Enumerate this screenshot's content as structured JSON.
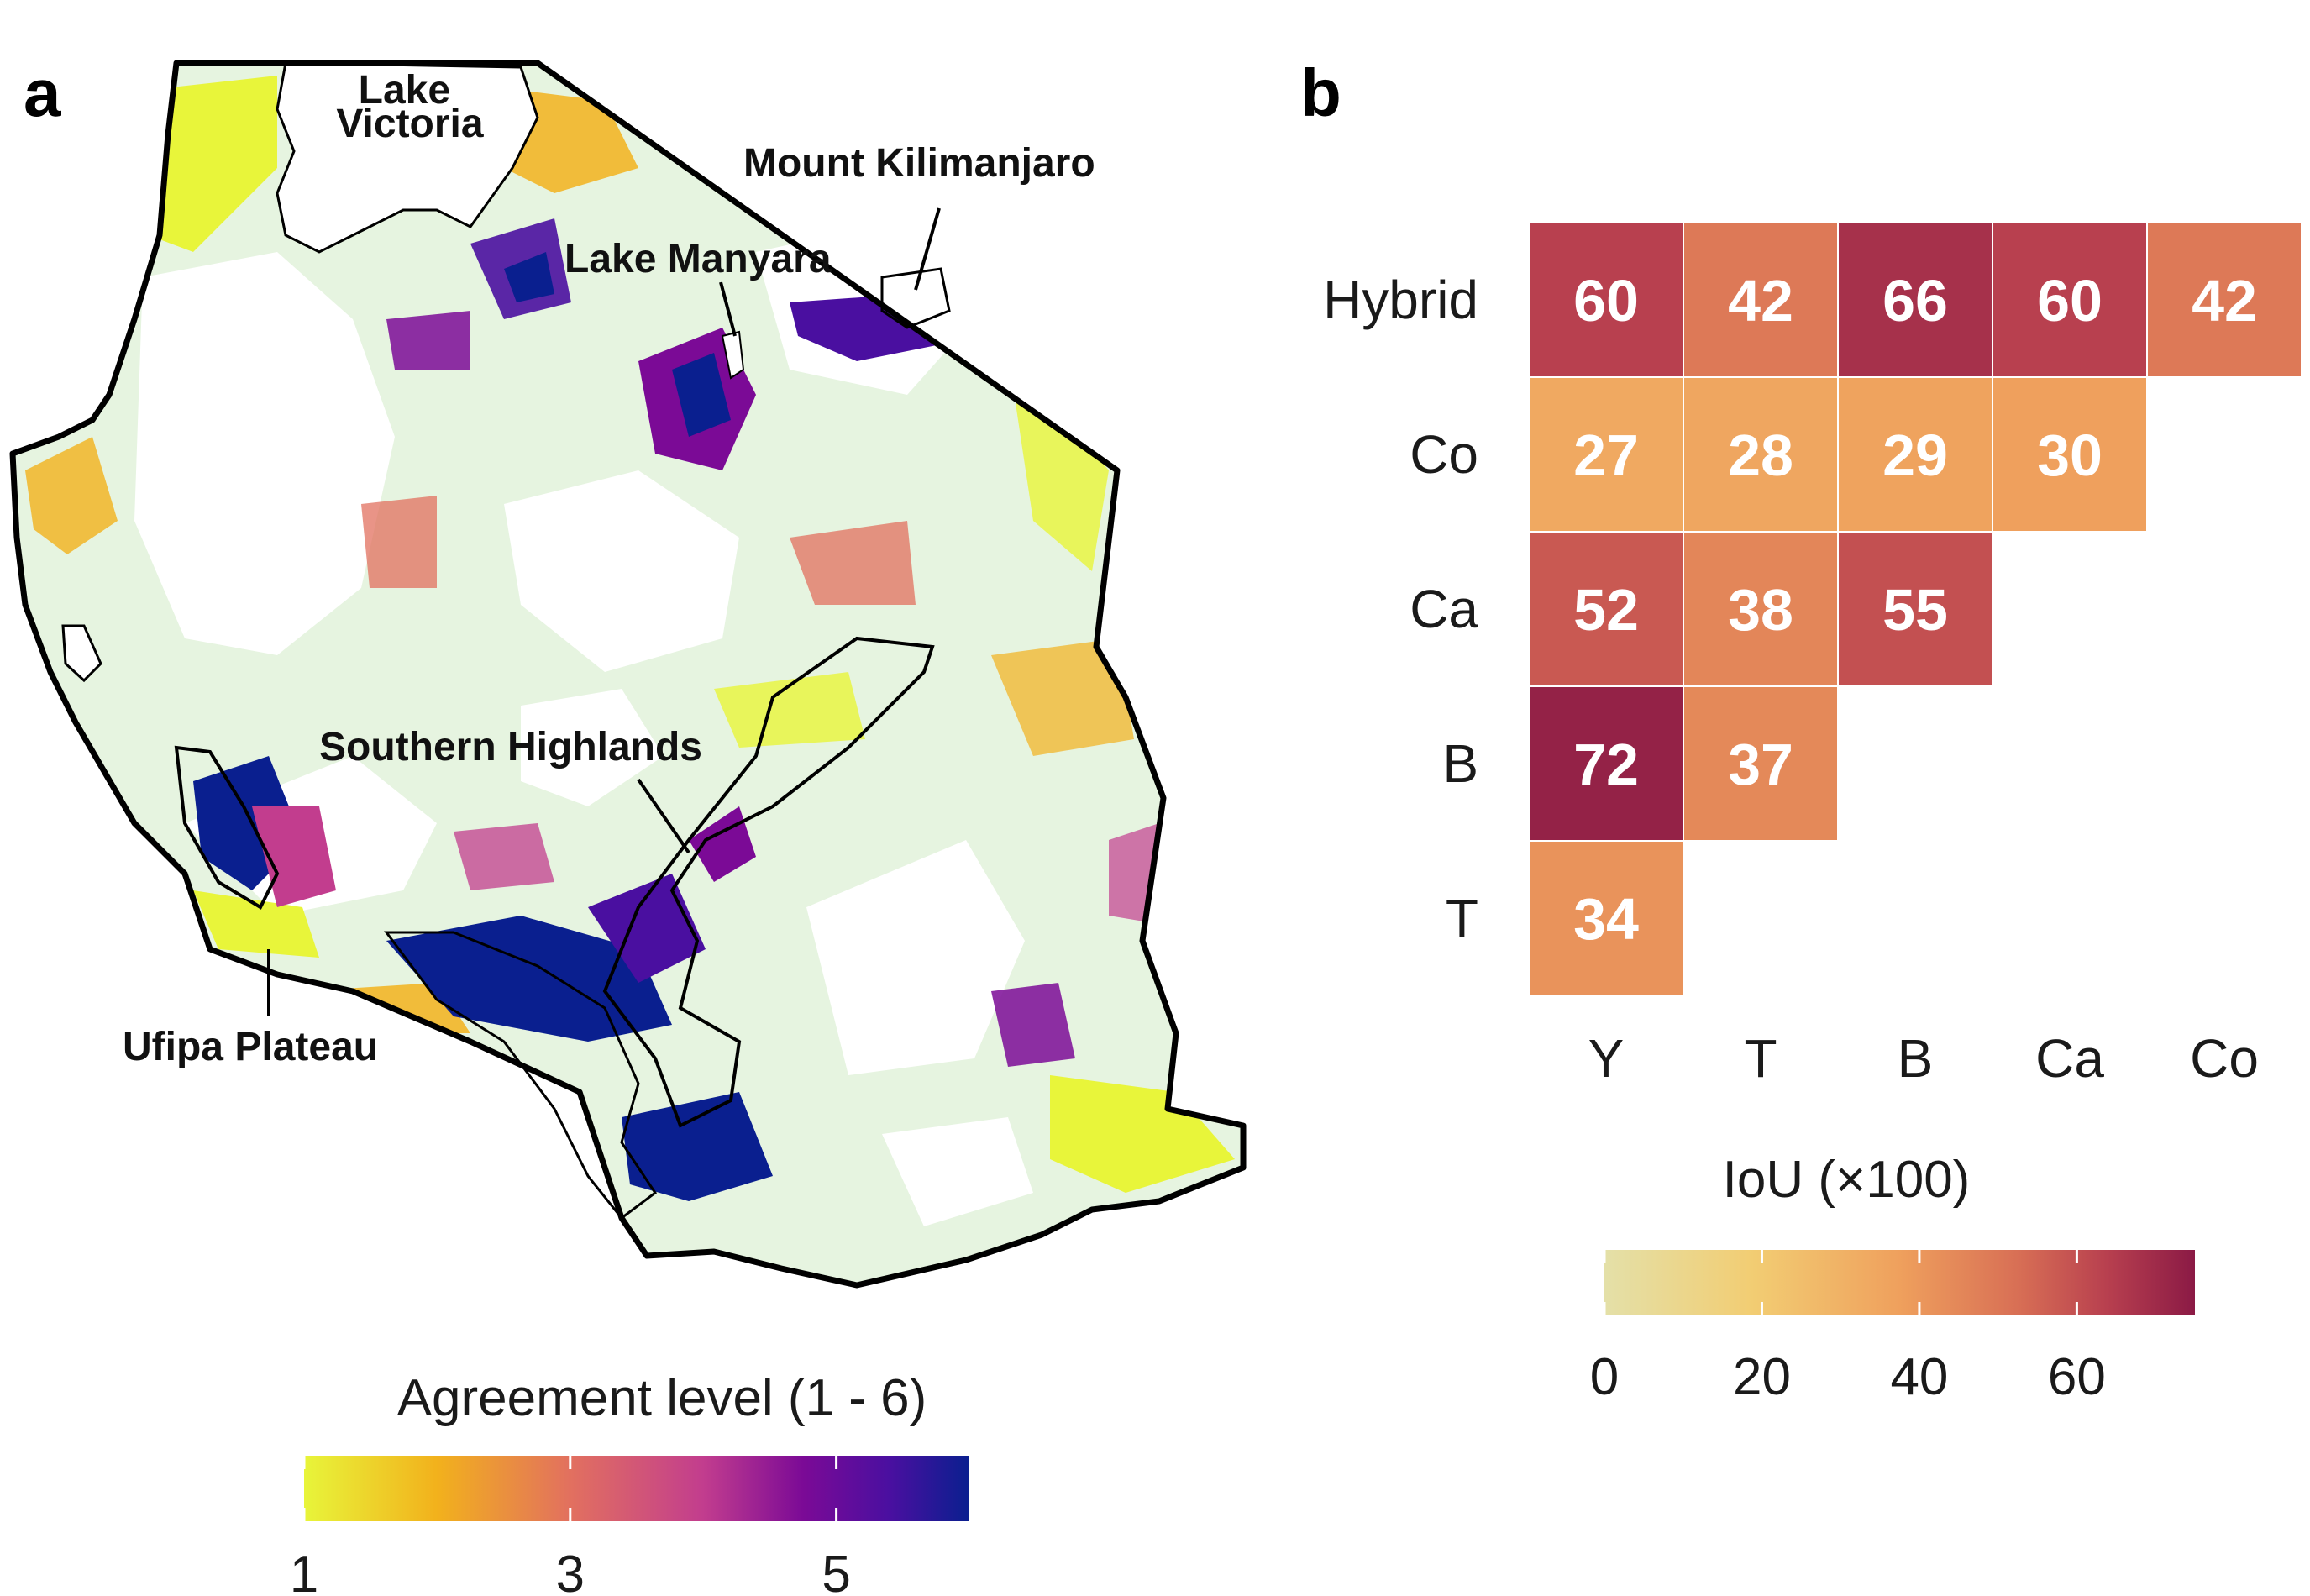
{
  "panels": {
    "a": "a",
    "b": "b"
  },
  "map": {
    "labels": {
      "lake_victoria": [
        "Lake",
        "Victoria"
      ],
      "kilimanjaro": "Mount Kilimanjaro",
      "manyara": "Lake Manyara",
      "southern_highlands": "Southern Highlands",
      "ufipa": "Ufipa Plateau"
    },
    "legend": {
      "title": "Agreement level (1 - 6)",
      "min": 1,
      "max": 6,
      "ticks": [
        "1",
        "3",
        "5"
      ],
      "tick_values": [
        1,
        3,
        5
      ],
      "colors": [
        "#e8f53a",
        "#f2b11c",
        "#e2705f",
        "#c23d8e",
        "#7b0a96",
        "#4a0fa0",
        "#0a1f8f"
      ]
    },
    "colors": {
      "background_cropland": "#e6f4e0",
      "outline": "#000000"
    }
  },
  "chart_data": {
    "type": "heatmap",
    "title": "",
    "xlabel": "",
    "ylabel": "",
    "x": [
      "Y",
      "T",
      "B",
      "Ca",
      "Co"
    ],
    "y": [
      "Hybrid",
      "Co",
      "Ca",
      "B",
      "T"
    ],
    "cells": [
      {
        "row": "Hybrid",
        "col": "Y",
        "value": 60
      },
      {
        "row": "Hybrid",
        "col": "T",
        "value": 42
      },
      {
        "row": "Hybrid",
        "col": "B",
        "value": 66
      },
      {
        "row": "Hybrid",
        "col": "Ca",
        "value": 60
      },
      {
        "row": "Hybrid",
        "col": "Co",
        "value": 42
      },
      {
        "row": "Co",
        "col": "Y",
        "value": 27
      },
      {
        "row": "Co",
        "col": "T",
        "value": 28
      },
      {
        "row": "Co",
        "col": "B",
        "value": 29
      },
      {
        "row": "Co",
        "col": "Ca",
        "value": 30
      },
      {
        "row": "Ca",
        "col": "Y",
        "value": 52
      },
      {
        "row": "Ca",
        "col": "T",
        "value": 38
      },
      {
        "row": "Ca",
        "col": "B",
        "value": 55
      },
      {
        "row": "B",
        "col": "Y",
        "value": 72
      },
      {
        "row": "B",
        "col": "T",
        "value": 37
      },
      {
        "row": "T",
        "col": "Y",
        "value": 34
      }
    ],
    "legend": {
      "title": "IoU (×100)",
      "min": 0,
      "max": 75,
      "ticks": [
        "0",
        "20",
        "40",
        "60"
      ],
      "tick_values": [
        0,
        20,
        40,
        60
      ]
    },
    "colorscale": [
      "#e4e0a8",
      "#f2cd73",
      "#efa05d",
      "#d86f55",
      "#b8404f",
      "#8b1a45"
    ]
  }
}
